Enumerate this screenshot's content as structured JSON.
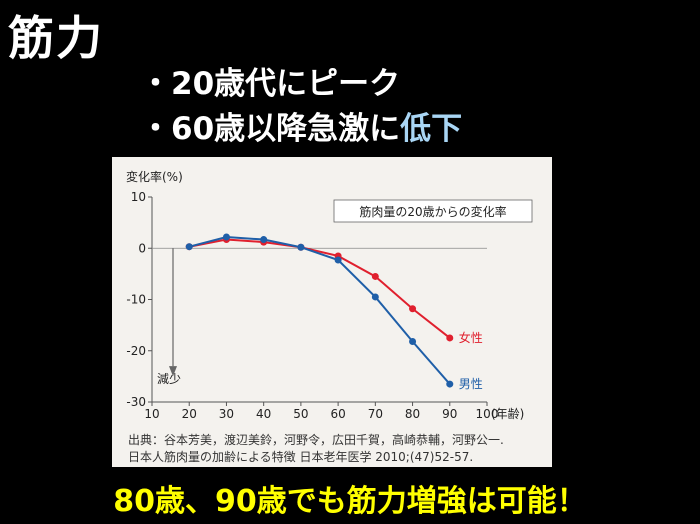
{
  "slide": {
    "title": "筋力",
    "bullet1_prefix": "・",
    "bullet1_text": "20歳代にピーク",
    "bullet2_prefix": "・",
    "bullet2_main": "60歳以降急激に",
    "bullet2_highlight": "低下",
    "conclusion": "80歳、90歳でも筋力増強は可能！"
  },
  "colors": {
    "background": "#000000",
    "highlight": "#a9d6f5",
    "conclusion": "#ffff00",
    "female": "#e0202e",
    "male": "#1f5fa8"
  },
  "chart_data": {
    "type": "line",
    "ylabel": "変化率(%)",
    "xlabel": "(年齢)",
    "legend_box": "筋肉量の20歳からの変化率",
    "arrow_label": "減少",
    "xlim": [
      10,
      100
    ],
    "ylim": [
      -30,
      10
    ],
    "x_ticks": [
      10,
      20,
      30,
      40,
      50,
      60,
      70,
      80,
      90,
      100
    ],
    "y_ticks": [
      10,
      0,
      -10,
      -20,
      -30
    ],
    "grid": false,
    "x": [
      20,
      30,
      40,
      50,
      60,
      70,
      80,
      90
    ],
    "series": [
      {
        "name": "女性",
        "color": "#e0202e",
        "values": [
          0.3,
          1.7,
          1.2,
          0.2,
          -1.5,
          -5.5,
          -11.8,
          -17.5
        ]
      },
      {
        "name": "男性",
        "color": "#1f5fa8",
        "values": [
          0.3,
          2.2,
          1.7,
          0.2,
          -2.3,
          -9.5,
          -18.2,
          -26.5
        ]
      }
    ],
    "source_line1": "出典：谷本芳美，渡辺美鈴，河野令，広田千賀，高崎恭輔，河野公一.",
    "source_line2": "日本人筋肉量の加齢による特徴  日本老年医学 2010;(47)52-57."
  }
}
